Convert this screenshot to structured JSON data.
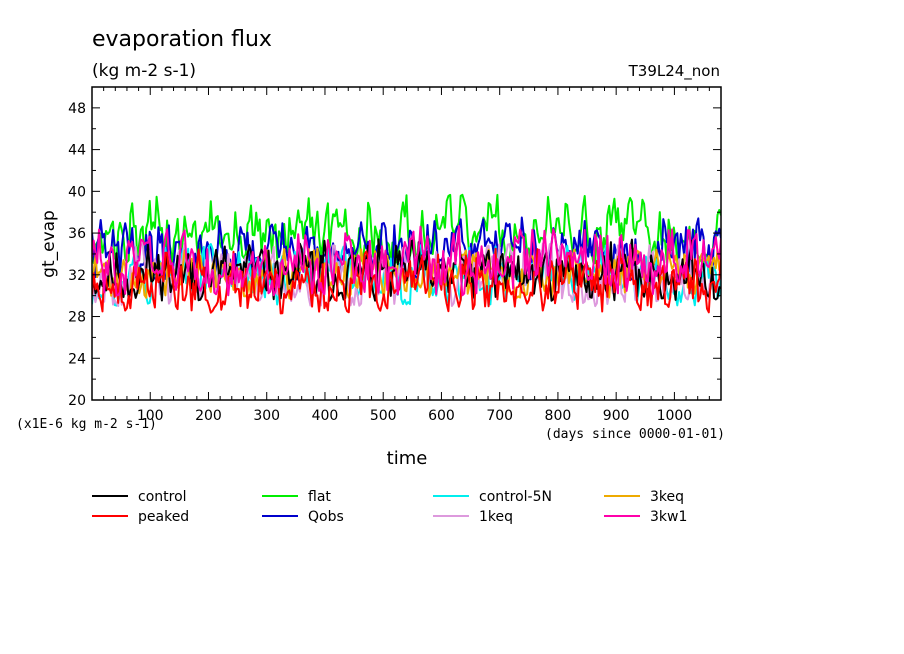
{
  "chart_data": {
    "type": "line",
    "title": "evaporation flux",
    "subtitle": "(kg m-2 s-1)",
    "run_label": "T39L24_non",
    "xlabel": "time",
    "ylabel": "gt_evap",
    "x_unit_label": "(days since 0000-01-01)",
    "y_unit_label": "(x1E-6 kg m-2 s-1)",
    "xlim": [
      0,
      1080
    ],
    "ylim": [
      20,
      50
    ],
    "x_ticks": [
      100,
      200,
      300,
      400,
      500,
      600,
      700,
      800,
      900,
      1000
    ],
    "y_ticks": [
      20,
      24,
      28,
      32,
      36,
      40,
      44,
      48
    ],
    "legend_placement": "bottom",
    "series": [
      {
        "name": "control",
        "color": "#000000",
        "mean": 32.0,
        "min": 29.5,
        "max": 35.5,
        "noise_seed": 11
      },
      {
        "name": "peaked",
        "color": "#ff0000",
        "mean": 31.0,
        "min": 28.3,
        "max": 34.5,
        "noise_seed": 23
      },
      {
        "name": "flat",
        "color": "#00ee00",
        "mean": 35.8,
        "min": 33.0,
        "max": 39.7,
        "noise_seed": 37
      },
      {
        "name": "Qobs",
        "color": "#0000cc",
        "mean": 34.3,
        "min": 31.5,
        "max": 37.5,
        "noise_seed": 41
      },
      {
        "name": "control-5N",
        "color": "#00eeee",
        "mean": 32.0,
        "min": 29.0,
        "max": 35.0,
        "noise_seed": 53
      },
      {
        "name": "1keq",
        "color": "#dd99dd",
        "mean": 32.0,
        "min": 29.0,
        "max": 35.0,
        "noise_seed": 67
      },
      {
        "name": "3keq",
        "color": "#eeaa00",
        "mean": 32.0,
        "min": 29.5,
        "max": 34.5,
        "noise_seed": 71
      },
      {
        "name": "3kw1",
        "color": "#ff00aa",
        "mean": 33.0,
        "min": 30.0,
        "max": 37.0,
        "noise_seed": 83
      }
    ]
  }
}
